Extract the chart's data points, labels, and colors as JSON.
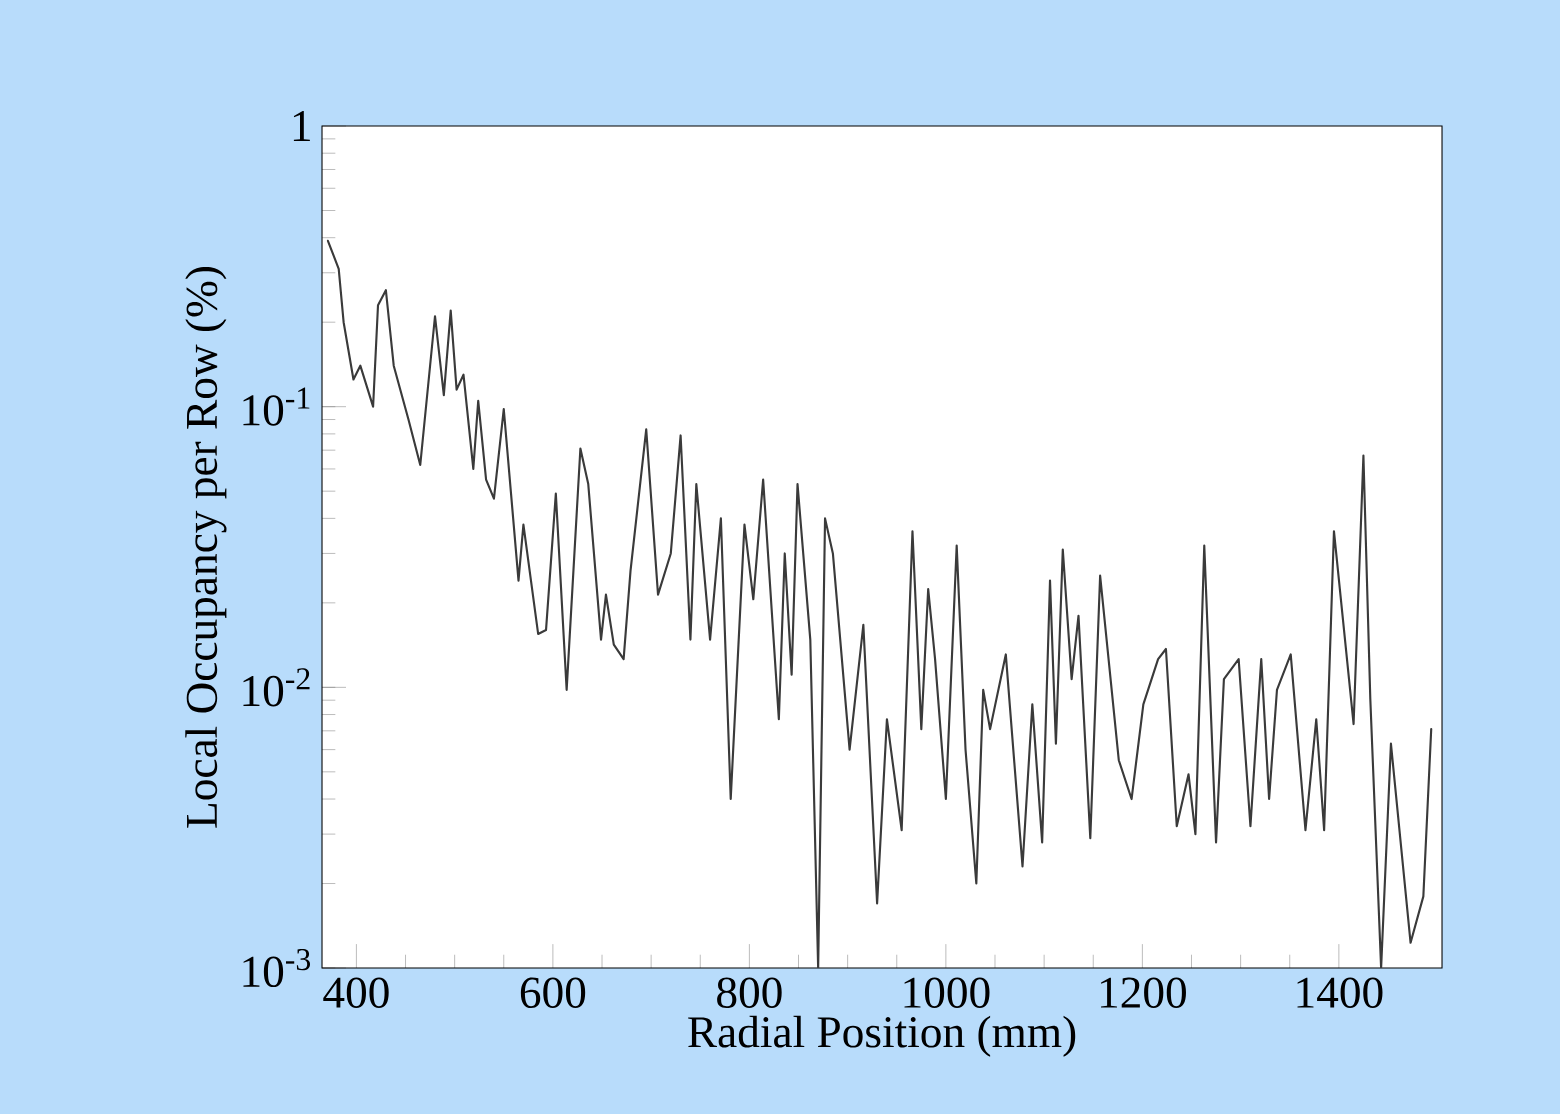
{
  "chart_data": {
    "type": "line",
    "xlabel": "Radial Position (mm)",
    "ylabel": "Local Occupancy per Row (%)",
    "log": true,
    "xlim": [
      365,
      1505
    ],
    "ylim": [
      0.001,
      1
    ],
    "xticks": [
      400,
      600,
      800,
      1000,
      1200,
      1400
    ],
    "yticks": [
      {
        "value": 0.001,
        "label": "10$^{-3}$"
      },
      {
        "value": 0.01,
        "label": "10$^{-2}$"
      },
      {
        "value": 0.1,
        "label": "10$^{-1}$"
      },
      {
        "value": 1,
        "label": "1"
      }
    ],
    "series": [
      {
        "color": "#3a3a3a",
        "x": [
          371,
          382,
          387,
          397,
          404,
          417,
          422,
          430,
          438,
          453,
          465,
          480,
          489,
          496,
          502,
          509,
          519,
          524,
          532,
          540,
          550,
          565,
          570,
          585,
          593,
          603,
          614,
          628,
          636,
          649,
          654,
          662,
          672,
          679,
          695,
          707,
          720,
          730,
          740,
          746,
          760,
          771,
          781,
          795,
          804,
          814,
          830,
          836,
          843,
          849,
          862,
          870,
          877,
          885,
          902,
          916,
          930,
          940,
          955,
          966,
          975,
          982,
          989,
          1000,
          1011,
          1020,
          1031,
          1038,
          1045,
          1061,
          1078,
          1088,
          1098,
          1106,
          1112,
          1119,
          1128,
          1135,
          1147,
          1157,
          1176,
          1189,
          1201,
          1216,
          1224,
          1235,
          1247,
          1254,
          1263,
          1275,
          1283,
          1298,
          1310,
          1321,
          1329,
          1337,
          1351,
          1366,
          1377,
          1385,
          1395,
          1415,
          1425,
          1432,
          1443,
          1453,
          1473,
          1486,
          1494
        ],
        "values": [
          0.39,
          0.31,
          0.2,
          0.125,
          0.14,
          0.1,
          0.23,
          0.26,
          0.14,
          0.09,
          0.062,
          0.21,
          0.11,
          0.22,
          0.115,
          0.13,
          0.06,
          0.105,
          0.055,
          0.047,
          0.098,
          0.024,
          0.038,
          0.0155,
          0.016,
          0.049,
          0.0098,
          0.071,
          0.053,
          0.0148,
          0.0214,
          0.0142,
          0.0126,
          0.026,
          0.083,
          0.0214,
          0.03,
          0.079,
          0.0148,
          0.053,
          0.0148,
          0.04,
          0.004,
          0.038,
          0.0206,
          0.055,
          0.0077,
          0.03,
          0.0111,
          0.053,
          0.0148,
          0.001,
          0.04,
          0.03,
          0.006,
          0.0167,
          0.0017,
          0.0077,
          0.0031,
          0.036,
          0.0071,
          0.0224,
          0.0126,
          0.004,
          0.032,
          0.006,
          0.002,
          0.0098,
          0.0071,
          0.0131,
          0.0023,
          0.0087,
          0.0028,
          0.024,
          0.0063,
          0.031,
          0.0107,
          0.018,
          0.0029,
          0.025,
          0.0055,
          0.004,
          0.0087,
          0.0126,
          0.0137,
          0.0032,
          0.0049,
          0.003,
          0.032,
          0.0028,
          0.0107,
          0.0126,
          0.0032,
          0.0126,
          0.004,
          0.0098,
          0.0131,
          0.0031,
          0.0077,
          0.0031,
          0.036,
          0.0074,
          0.067,
          0.0091,
          0.001,
          0.0063,
          0.00123,
          0.0018,
          0.0071
        ]
      }
    ]
  }
}
